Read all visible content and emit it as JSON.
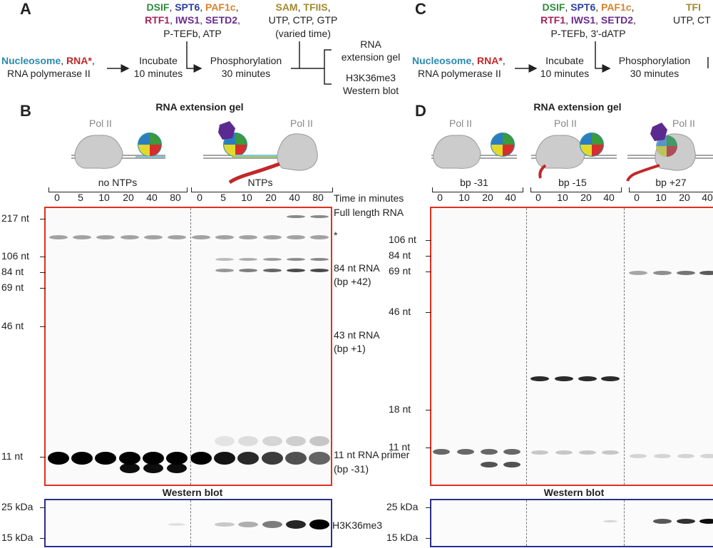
{
  "panels": {
    "A": "A",
    "B": "B",
    "C": "C",
    "D": "D"
  },
  "panel_a": {
    "factors_line1": [
      {
        "t": "DSIF",
        "c": "green"
      },
      {
        "t": ", ",
        "c": ""
      },
      {
        "t": "SPT6",
        "c": "blue"
      },
      {
        "t": ", ",
        "c": ""
      },
      {
        "t": "PAF1c",
        "c": "orange"
      },
      {
        "t": ",",
        "c": ""
      }
    ],
    "factors_line2": [
      {
        "t": "RTF1",
        "c": "magenta"
      },
      {
        "t": ", ",
        "c": ""
      },
      {
        "t": "IWS1",
        "c": "purple"
      },
      {
        "t": ", ",
        "c": ""
      },
      {
        "t": "SETD2",
        "c": "purple"
      },
      {
        "t": ",",
        "c": ""
      }
    ],
    "factors_line3": "P-TEFb, ATP",
    "sam_line": [
      {
        "t": "SAM",
        "c": "olive"
      },
      {
        "t": ", ",
        "c": ""
      },
      {
        "t": "TFIIS",
        "c": "olive"
      },
      {
        "t": ",",
        "c": ""
      }
    ],
    "ntp_line": "UTP, CTP, GTP",
    "varied": "(varied time)",
    "start_line1": [
      {
        "t": "Nucleosome",
        "c": "cyan"
      },
      {
        "t": ", ",
        "c": ""
      },
      {
        "t": "RNA*",
        "c": "red"
      },
      {
        "t": ",",
        "c": ""
      }
    ],
    "start_line2": "RNA polymerase II",
    "incubate1": "Incubate",
    "incubate2": "10 minutes",
    "phos1": "Phosphorylation",
    "phos2": "30 minutes",
    "out1a": "RNA",
    "out1b": "extension gel",
    "out2a": "H3K36me3",
    "out2b": "Western blot"
  },
  "panel_c": {
    "factors_line1": [
      {
        "t": "DSIF",
        "c": "green"
      },
      {
        "t": ", ",
        "c": ""
      },
      {
        "t": "SPT6",
        "c": "blue"
      },
      {
        "t": ", ",
        "c": ""
      },
      {
        "t": "PAF1c",
        "c": "orange"
      },
      {
        "t": ",",
        "c": ""
      }
    ],
    "factors_line2": [
      {
        "t": "RTF1",
        "c": "magenta"
      },
      {
        "t": ", ",
        "c": ""
      },
      {
        "t": "IWS1",
        "c": "purple"
      },
      {
        "t": ", ",
        "c": ""
      },
      {
        "t": "SETD2",
        "c": "purple"
      },
      {
        "t": ",",
        "c": ""
      }
    ],
    "factors_line3": "P-TEFb, 3'-dATP",
    "tf_partial": "TFI",
    "ntp_partial": "UTP, CT",
    "start_line1": [
      {
        "t": "Nucleosome",
        "c": "cyan"
      },
      {
        "t": ", ",
        "c": ""
      },
      {
        "t": "RNA*",
        "c": "red"
      },
      {
        "t": ",",
        "c": ""
      }
    ],
    "start_line2": "RNA polymerase II",
    "incubate1": "Incubate",
    "incubate2": "10 minutes",
    "phos1": "Phosphorylation",
    "phos2": "30 minutes"
  },
  "panel_b": {
    "title": "RNA extension gel",
    "pol_label": "Pol II",
    "cond1": "no NTPs",
    "cond2": "NTPs",
    "times": [
      "0",
      "5",
      "10",
      "20",
      "40",
      "80",
      "0",
      "5",
      "10",
      "20",
      "40",
      "80"
    ],
    "time_label": "Time in minutes",
    "markers": [
      "217 nt",
      "106 nt",
      "84 nt",
      "69 nt",
      "46 nt",
      "11 nt"
    ],
    "right_labels": {
      "full": "Full length RNA",
      "star": "*",
      "r84a": "84 nt RNA",
      "r84b": "(bp +42)",
      "r43a": "43 nt RNA",
      "r43b": "(bp +1)",
      "r11a": "11 nt RNA primer",
      "r11b": "(bp -31)"
    },
    "wb_title": "Western blot",
    "wb_markers": [
      "25 kDa",
      "15 kDa"
    ],
    "wb_label": "H3K36me3"
  },
  "panel_d": {
    "title": "RNA extension gel",
    "pol_label": "Pol II",
    "conds": [
      "bp -31",
      "bp -15",
      "bp +27"
    ],
    "times": [
      "0",
      "10",
      "20",
      "40",
      "0",
      "10",
      "20",
      "40",
      "0",
      "10",
      "20",
      "40"
    ],
    "markers": [
      "106 nt",
      "84 nt",
      "69 nt",
      "46 nt",
      "18 nt",
      "11 nt"
    ],
    "wb_title": "Western blot",
    "wb_markers": [
      "25 kDa",
      "15 kDa"
    ]
  }
}
